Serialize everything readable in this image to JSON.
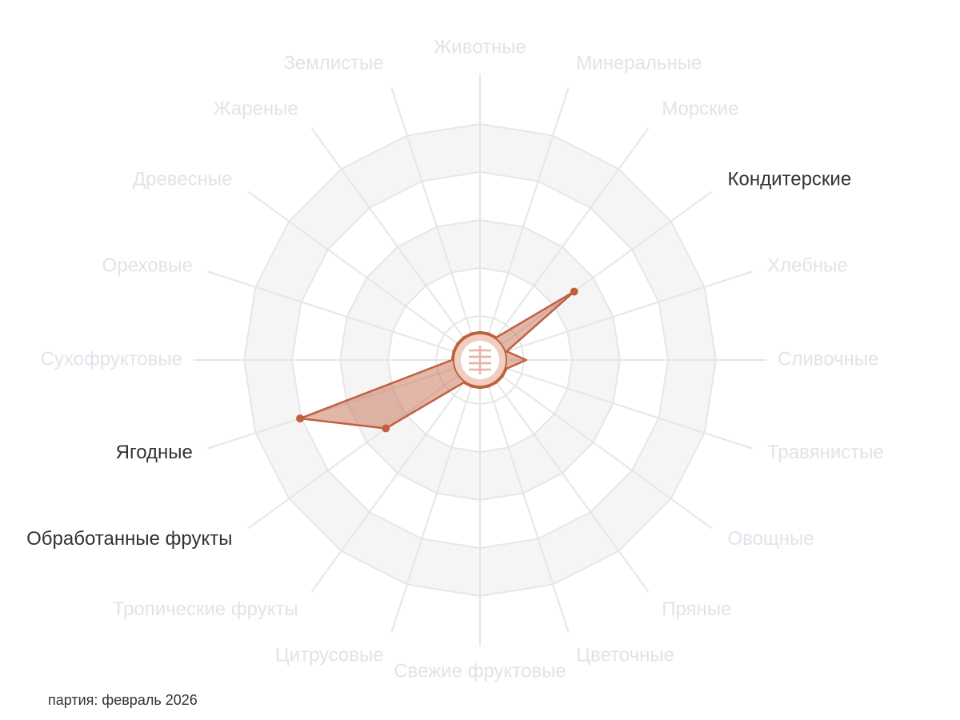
{
  "chart_data": {
    "type": "radar",
    "categories": [
      "Животные",
      "Минеральные",
      "Морские",
      "Кондитерские",
      "Хлебные",
      "Сливочные",
      "Травянистые",
      "Овощные",
      "Пряные",
      "Цветочные",
      "Свежие фруктовые",
      "Цитрусовые",
      "Тропические фрукты",
      "Обработанные фрукты",
      "Ягодные",
      "Сухофруктовые",
      "Ореховые",
      "Древесные",
      "Жареные",
      "Землистые"
    ],
    "values": [
      0,
      0,
      0,
      1.7,
      0,
      0.35,
      0,
      0,
      0,
      0,
      0,
      0,
      0,
      1.7,
      3.1,
      0,
      0,
      0,
      0,
      0
    ],
    "color": "#c0603f",
    "ylim": [
      0,
      4
    ],
    "caption": "партия: февраль 2026"
  }
}
